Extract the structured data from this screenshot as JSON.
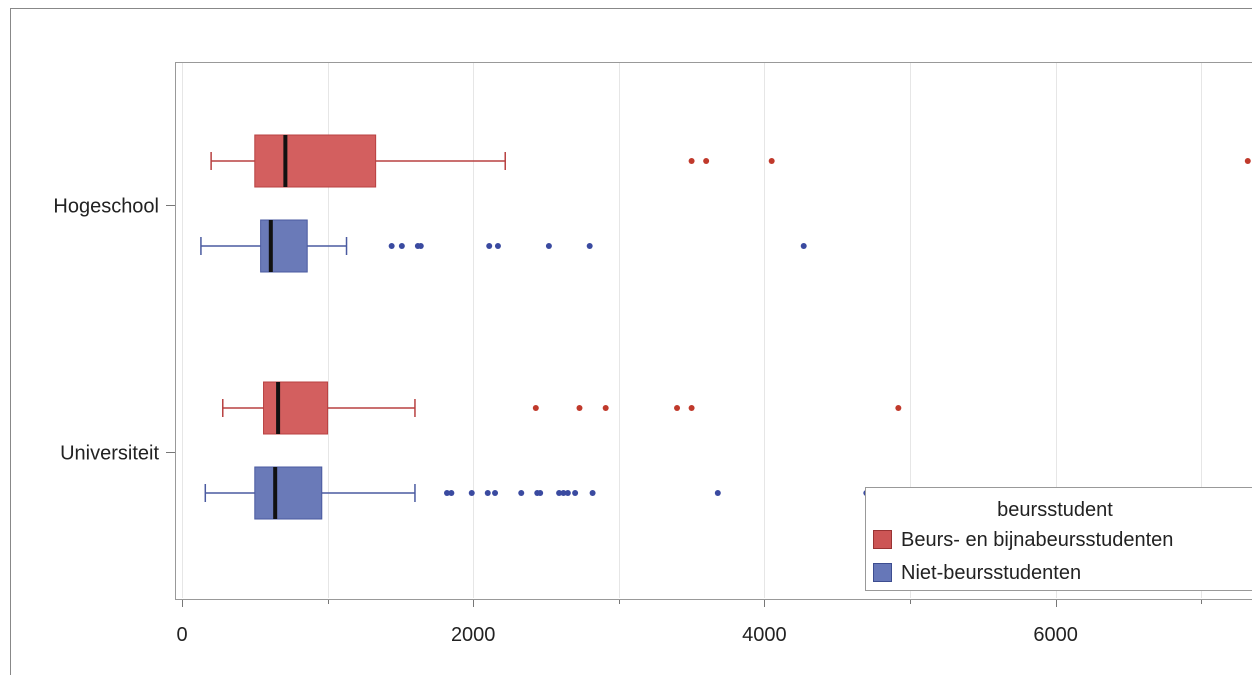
{
  "chart_data": {
    "type": "boxplot",
    "orientation": "horizontal",
    "categories": [
      "Hogeschool",
      "Universiteit"
    ],
    "x_ticks": [
      0,
      2000,
      4000,
      6000
    ],
    "x_tick_labels": [
      "0",
      "2000",
      "4000",
      "6000"
    ],
    "xlim": [
      -40,
      7320
    ],
    "grid": true,
    "legend": {
      "title": "beursstudent",
      "position": "bottom-right",
      "entries": [
        {
          "label": "Beurs- en bijnabeursstudenten",
          "color": "#cc5555"
        },
        {
          "label": "Niet-beursstudenten",
          "color": "#6677b8"
        }
      ]
    },
    "series": [
      {
        "name": "Beurs- en bijnabeursstudenten",
        "fill": "#d35f5f",
        "stroke": "#b84040",
        "outlier": "#c0392b",
        "boxes": [
          {
            "category": "Hogeschool",
            "min": 200,
            "q1": 500,
            "median": 710,
            "q3": 1330,
            "max": 2220,
            "outliers": [
              3500,
              3600,
              4050,
              7320
            ]
          },
          {
            "category": "Universiteit",
            "min": 280,
            "q1": 560,
            "median": 660,
            "q3": 1000,
            "max": 1600,
            "outliers": [
              2430,
              2730,
              2910,
              3400,
              3500,
              4920
            ]
          }
        ]
      },
      {
        "name": "Niet-beursstudenten",
        "fill": "#6a7ab8",
        "stroke": "#4a5aa0",
        "outlier": "#3a4aa0",
        "boxes": [
          {
            "category": "Hogeschool",
            "min": 130,
            "q1": 540,
            "median": 610,
            "q3": 860,
            "max": 1130,
            "outliers": [
              1440,
              1510,
              1620,
              1640,
              2110,
              2170,
              2520,
              2800,
              4270
            ]
          },
          {
            "category": "Universiteit",
            "min": 160,
            "q1": 500,
            "median": 640,
            "q3": 960,
            "max": 1600,
            "outliers": [
              1820,
              1850,
              1990,
              2100,
              2150,
              2330,
              2440,
              2460,
              2590,
              2620,
              2650,
              2700,
              2820,
              3680,
              4700
            ]
          }
        ]
      }
    ]
  }
}
